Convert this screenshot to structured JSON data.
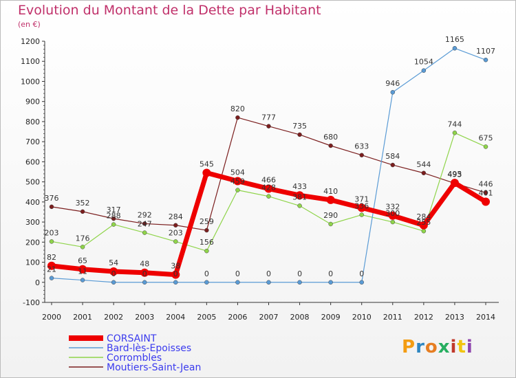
{
  "title": "Evolution du Montant de la Dette par Habitant",
  "subtitle": "(en €)",
  "logo": {
    "letters": [
      "P",
      "r",
      "o",
      "x",
      "i",
      "t",
      "i"
    ],
    "colors": [
      "#f39c12",
      "#2e86c1",
      "#e67e22",
      "#27ae60",
      "#c0392b",
      "#f1c40f",
      "#8e44ad"
    ]
  },
  "chart_data": {
    "type": "line",
    "x": [
      "2000",
      "2001",
      "2002",
      "2003",
      "2004",
      "2005",
      "2006",
      "2007",
      "2008",
      "2009",
      "2010",
      "2011",
      "2012",
      "2013",
      "2014"
    ],
    "ylim": [
      -100,
      1200
    ],
    "yticks": [
      -100,
      0,
      100,
      200,
      300,
      400,
      500,
      600,
      700,
      800,
      900,
      1000,
      1100,
      1200
    ],
    "grid": false,
    "legend": "bottom-left",
    "series": [
      {
        "name": "Moutiers-Saint-Jean",
        "color": "#7b1e1e",
        "values": [
          376,
          352,
          317,
          292,
          284,
          259,
          820,
          777,
          735,
          680,
          633,
          584,
          544,
          493,
          446
        ]
      },
      {
        "name": "Corrombles",
        "color": "#8fd44a",
        "values": [
          203,
          176,
          288,
          247,
          203,
          156,
          459,
          428,
          381,
          290,
          336,
          300,
          255,
          744,
          675
        ]
      },
      {
        "name": "Bard-lès-Epoisses",
        "color": "#5a9bd5",
        "values": [
          21,
          11,
          0,
          0,
          0,
          0,
          0,
          0,
          0,
          0,
          0,
          946,
          1054,
          1165,
          1107
        ]
      },
      {
        "name": "CORSAINT",
        "color": "#ee0000",
        "values": [
          82,
          65,
          54,
          48,
          38,
          545,
          504,
          466,
          433,
          410,
          371,
          332,
          284,
          495,
          401
        ]
      }
    ]
  }
}
